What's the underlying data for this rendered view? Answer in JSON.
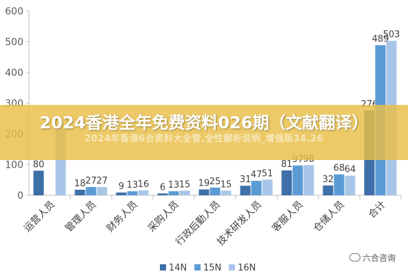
{
  "chart_data": {
    "type": "bar",
    "categories": [
      "运营人员",
      "管理人员",
      "财务人员",
      "采购人员",
      "行政后勤人员",
      "技术研发人员",
      "客服人员",
      "仓储人员",
      "合计"
    ],
    "series": [
      {
        "name": "14N",
        "color": "#3E6FA8",
        "values": [
          80,
          18,
          9,
          6,
          19,
          31,
          81,
          32,
          276
        ]
      },
      {
        "name": "15N",
        "color": "#5B9BD5",
        "values": [
          null,
          27,
          13,
          13,
          25,
          47,
          97,
          68,
          489
        ]
      },
      {
        "name": "16N",
        "color": "#A9C6E8",
        "values": [
          217,
          27,
          16,
          15,
          15,
          51,
          98,
          64,
          503
        ]
      }
    ],
    "ylim": [
      0,
      600
    ],
    "yticks": [
      0,
      100,
      200,
      300,
      400,
      500,
      600
    ],
    "grid": false,
    "legend_position": "bottom"
  },
  "banner": {
    "title": "2024香港全年免费资料026期（文献翻译）",
    "subtitle": "2024年香港6合资料大全管,全性解析说明_增强版34.26"
  },
  "watermark": {
    "text": "六合咨询",
    "icon": "wechat-icon"
  }
}
